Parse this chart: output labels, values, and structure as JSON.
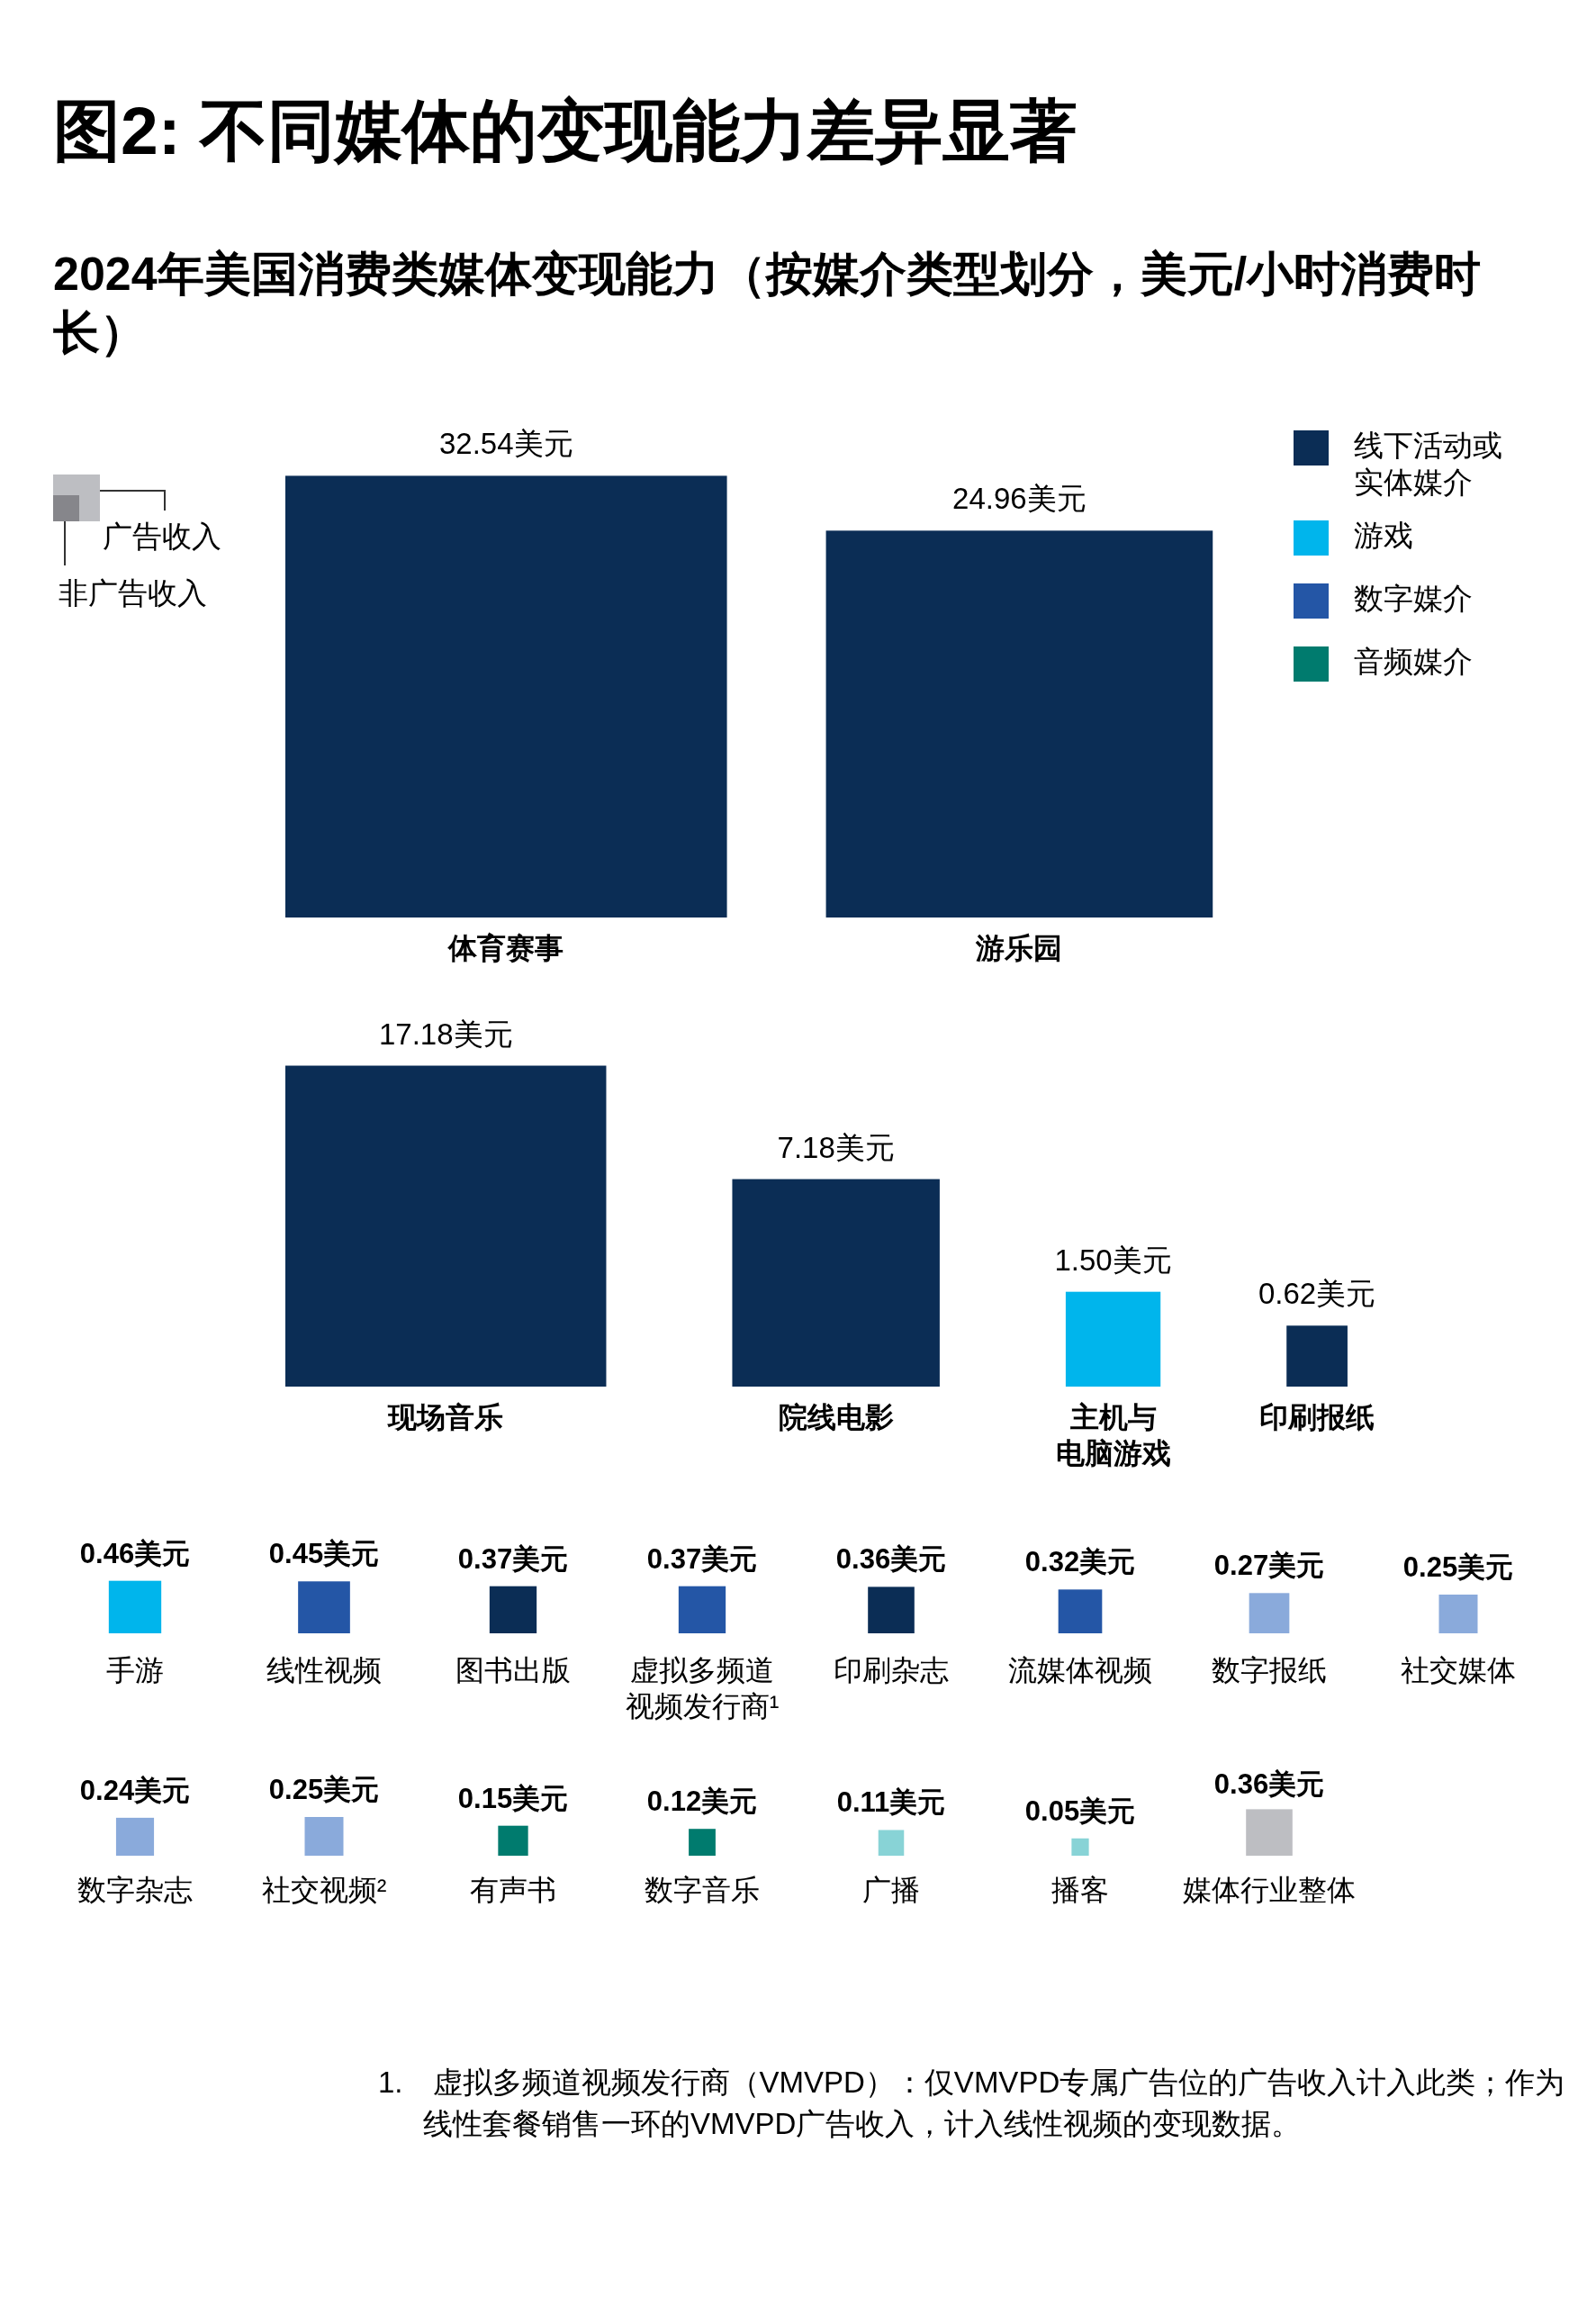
{
  "chart_data": {
    "type": "other",
    "title": "图2: 不同媒体的变现能力差异显著",
    "subtitle": "2024年美国消费类媒体变现能力（按媒介类型划分，美元/小时消费时长）",
    "categories": [
      "体育赛事",
      "游乐园",
      "现场音乐",
      "院线电影",
      "主机与电脑游戏",
      "印刷报纸",
      "手游",
      "线性视频",
      "图书出版",
      "虚拟多频道视频发行商¹",
      "印刷杂志",
      "流媒体视频",
      "数字报纸",
      "社交媒体",
      "数字杂志",
      "社交视频²",
      "有声书",
      "数字音乐",
      "广播",
      "播客",
      "媒体行业整体"
    ],
    "series": [
      {
        "name": "线下活动或实体媒介",
        "color": "#0b2d55",
        "values": [
          32.54,
          24.96,
          17.18,
          7.18,
          null,
          0.62,
          null,
          null,
          0.37,
          null,
          0.36,
          null,
          null,
          null,
          null,
          null,
          null,
          null,
          null,
          null,
          null
        ],
        "value_labels": [
          "32.54美元",
          "24.96美元",
          "17.18美元",
          "7.18美元",
          null,
          "0.62美元",
          null,
          null,
          "0.37美元",
          null,
          "0.36美元",
          null,
          null,
          null,
          null,
          null,
          null,
          null,
          null,
          null,
          null
        ]
      },
      {
        "name": "游戏",
        "color": "#00b5ec",
        "values": [
          null,
          null,
          null,
          null,
          1.5,
          null,
          0.46,
          null,
          null,
          null,
          null,
          null,
          null,
          null,
          null,
          null,
          null,
          null,
          null,
          null,
          null
        ],
        "value_labels": [
          null,
          null,
          null,
          null,
          "1.50美元",
          null,
          "0.46美元",
          null,
          null,
          null,
          null,
          null,
          null,
          null,
          null,
          null,
          null,
          null,
          null,
          null,
          null
        ]
      },
      {
        "name": "数字媒介",
        "color": "#2456a6",
        "colors": [
          null,
          null,
          null,
          null,
          null,
          null,
          null,
          "#2456a6",
          null,
          "#2456a6",
          null,
          "#2456a6",
          "#8aaadb",
          "#8aaadb",
          "#8aaadb",
          "#8aaadb",
          null,
          null,
          null,
          null,
          null
        ],
        "values": [
          null,
          null,
          null,
          null,
          null,
          null,
          null,
          0.45,
          null,
          0.37,
          null,
          0.32,
          0.27,
          0.25,
          0.24,
          0.25,
          null,
          null,
          null,
          null,
          null
        ],
        "value_labels": [
          null,
          null,
          null,
          null,
          null,
          null,
          null,
          "0.45美元",
          null,
          "0.37美元",
          null,
          "0.32美元",
          "0.27美元",
          "0.25美元",
          "0.24美元",
          "0.25美元",
          null,
          null,
          null,
          null,
          null
        ]
      },
      {
        "name": "音频媒介",
        "color": "#007b6e",
        "colors": [
          null,
          null,
          null,
          null,
          null,
          null,
          null,
          null,
          null,
          null,
          null,
          null,
          null,
          null,
          null,
          null,
          "#007b6e",
          "#007b6e",
          "#88d3d6",
          "#88d3d6",
          null
        ],
        "values": [
          null,
          null,
          null,
          null,
          null,
          null,
          null,
          null,
          null,
          null,
          null,
          null,
          null,
          null,
          null,
          null,
          0.15,
          0.12,
          0.11,
          0.05,
          null
        ],
        "value_labels": [
          null,
          null,
          null,
          null,
          null,
          null,
          null,
          null,
          null,
          null,
          null,
          null,
          null,
          null,
          null,
          null,
          "0.15美元",
          "0.12美元",
          "0.11美元",
          "0.05美元",
          null
        ]
      },
      {
        "color": "#bdbec2",
        "values": [
          null,
          null,
          null,
          null,
          null,
          null,
          null,
          null,
          null,
          null,
          null,
          null,
          null,
          null,
          null,
          null,
          null,
          null,
          null,
          null,
          0.36
        ],
        "value_labels": [
          null,
          null,
          null,
          null,
          null,
          null,
          null,
          null,
          null,
          null,
          null,
          null,
          null,
          null,
          null,
          null,
          null,
          null,
          null,
          null,
          "0.36美元"
        ]
      }
    ],
    "legend": "top right",
    "annotations": [
      "广告收入",
      "非广告收入",
      "1.　虚拟多频道视频发行商（VMVPD）：仅VMVPD专属广告位的广告收入计入此类；作为线性套餐销售一环的VMVPD广告收入，计入线性视频的变现数据。"
    ]
  }
}
